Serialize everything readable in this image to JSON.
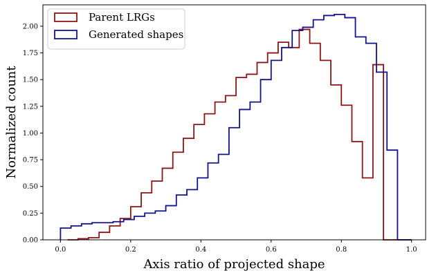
{
  "chart_data": {
    "type": "histogram",
    "xlabel": "Axis ratio of projected shape",
    "ylabel": "Normalized count",
    "xlim": [
      -0.05,
      1.04
    ],
    "ylim": [
      0,
      2.2
    ],
    "xticks": [
      0.0,
      0.2,
      0.4,
      0.6,
      0.8,
      1.0
    ],
    "xtick_labels": [
      "0.0",
      "0.2",
      "0.4",
      "0.6",
      "0.8",
      "1.0"
    ],
    "yticks": [
      0.0,
      0.25,
      0.5,
      0.75,
      1.0,
      1.25,
      1.5,
      1.75,
      2.0
    ],
    "ytick_labels": [
      "0.00",
      "0.25",
      "0.50",
      "0.75",
      "1.00",
      "1.25",
      "1.50",
      "1.75",
      "2.00"
    ],
    "legend_position": "top-left",
    "series": [
      {
        "name": "Parent LRGs",
        "color": "#8b1414",
        "bin_edges": [
          0.02,
          0.05,
          0.08,
          0.11,
          0.14,
          0.17,
          0.2,
          0.23,
          0.26,
          0.29,
          0.32,
          0.35,
          0.38,
          0.41,
          0.44,
          0.47,
          0.5,
          0.53,
          0.56,
          0.59,
          0.62,
          0.65,
          0.68,
          0.71,
          0.74,
          0.77,
          0.8,
          0.83,
          0.86,
          0.89,
          0.92,
          0.95,
          0.98,
          1.0
        ],
        "values": [
          0.0,
          0.01,
          0.02,
          0.07,
          0.13,
          0.2,
          0.31,
          0.44,
          0.55,
          0.67,
          0.82,
          0.95,
          1.08,
          1.18,
          1.29,
          1.35,
          1.52,
          1.55,
          1.66,
          1.75,
          1.85,
          1.8,
          1.97,
          1.84,
          1.68,
          1.45,
          1.26,
          0.92,
          0.58,
          1.64,
          0.0,
          0.0,
          0.0
        ]
      },
      {
        "name": "Generated shapes",
        "color": "#12128c",
        "bin_edges": [
          0.0,
          0.03,
          0.06,
          0.09,
          0.12,
          0.15,
          0.18,
          0.21,
          0.24,
          0.27,
          0.3,
          0.33,
          0.36,
          0.39,
          0.42,
          0.45,
          0.48,
          0.51,
          0.54,
          0.57,
          0.6,
          0.63,
          0.66,
          0.69,
          0.72,
          0.75,
          0.78,
          0.81,
          0.84,
          0.87,
          0.9,
          0.93,
          0.96,
          1.0
        ],
        "values": [
          0.11,
          0.13,
          0.15,
          0.16,
          0.16,
          0.17,
          0.19,
          0.22,
          0.25,
          0.27,
          0.32,
          0.42,
          0.47,
          0.58,
          0.72,
          0.8,
          1.05,
          1.22,
          1.29,
          1.5,
          1.68,
          1.8,
          1.96,
          1.99,
          2.06,
          2.1,
          2.11,
          2.08,
          1.9,
          1.84,
          1.57,
          0.84,
          0.0
        ]
      }
    ]
  }
}
